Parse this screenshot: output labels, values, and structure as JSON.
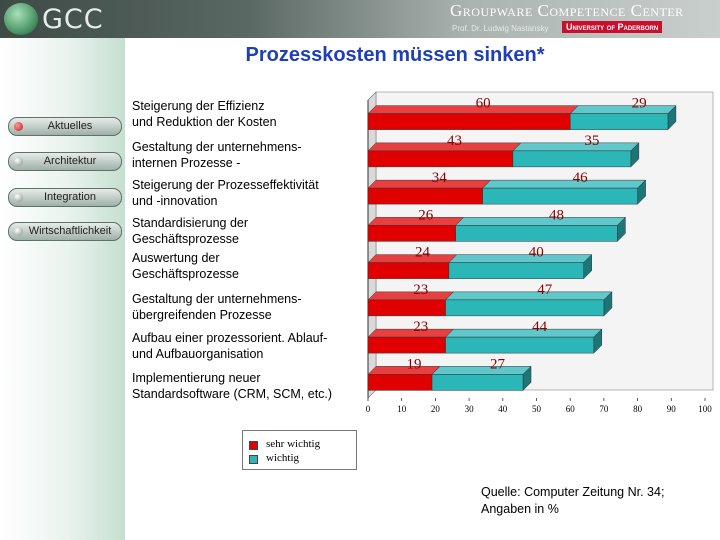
{
  "header": {
    "logo_text": "GCC",
    "title": "Groupware Competence Center",
    "subtitle": "Prof. Dr. Ludwig Nastansky",
    "university": "University of Paderborn"
  },
  "page_title": "Prozesskosten müssen sinken*",
  "nav": {
    "items": [
      {
        "label": "Aktuelles"
      },
      {
        "label": "Architektur"
      },
      {
        "label": "Integration"
      },
      {
        "label": "Wirtschaftlichkeit"
      }
    ]
  },
  "category_labels": [
    [
      "Steigerung der Effizienz",
      "und Reduktion der Kosten"
    ],
    [
      "Gestaltung der unternehmens-",
      "internen Prozesse -"
    ],
    [
      "Steigerung der Prozesseffektivität",
      "und -innovation"
    ],
    [
      "Standardisierung der",
      "Geschäftsprozesse"
    ],
    [
      "Auswertung der",
      "Geschäftsprozesse"
    ],
    [
      "Gestaltung der unternehmens-",
      "übergreifenden Prozesse"
    ],
    [
      "Aufbau einer prozessorient. Ablauf-",
      "und Aufbauorganisation"
    ],
    [
      "Implementierung neuer",
      "Standardsoftware (CRM, SCM, etc.)"
    ]
  ],
  "colors": {
    "sehr_wichtig": "#e00000",
    "wichtig": "#2bb6b8"
  },
  "chart_data": {
    "type": "bar",
    "orientation": "horizontal",
    "stacked": true,
    "categories": [
      "Steigerung der Effizienz und Reduktion der Kosten",
      "Gestaltung der unternehmens-internen Prozesse -",
      "Steigerung der Prozesseffektivität und -innovation",
      "Standardisierung der Geschäftsprozesse",
      "Auswertung der Geschäftsprozesse",
      "Gestaltung der unternehmens-übergreifenden Prozesse",
      "Aufbau einer prozessorient. Ablauf- und Aufbauorganisation",
      "Implementierung neuer Standardsoftware (CRM, SCM, etc.)"
    ],
    "series": [
      {
        "name": "sehr wichtig",
        "values": [
          60,
          43,
          34,
          26,
          24,
          23,
          23,
          19
        ]
      },
      {
        "name": "wichtig",
        "values": [
          29,
          35,
          46,
          48,
          40,
          47,
          44,
          27
        ]
      }
    ],
    "xlim": [
      0,
      100
    ],
    "xticks": [
      0,
      10,
      20,
      30,
      40,
      50,
      60,
      70,
      80,
      90,
      100
    ],
    "legend_position": "bottom-left",
    "source": [
      "Quelle: Computer Zeitung Nr. 34;",
      "Angaben in %"
    ]
  }
}
